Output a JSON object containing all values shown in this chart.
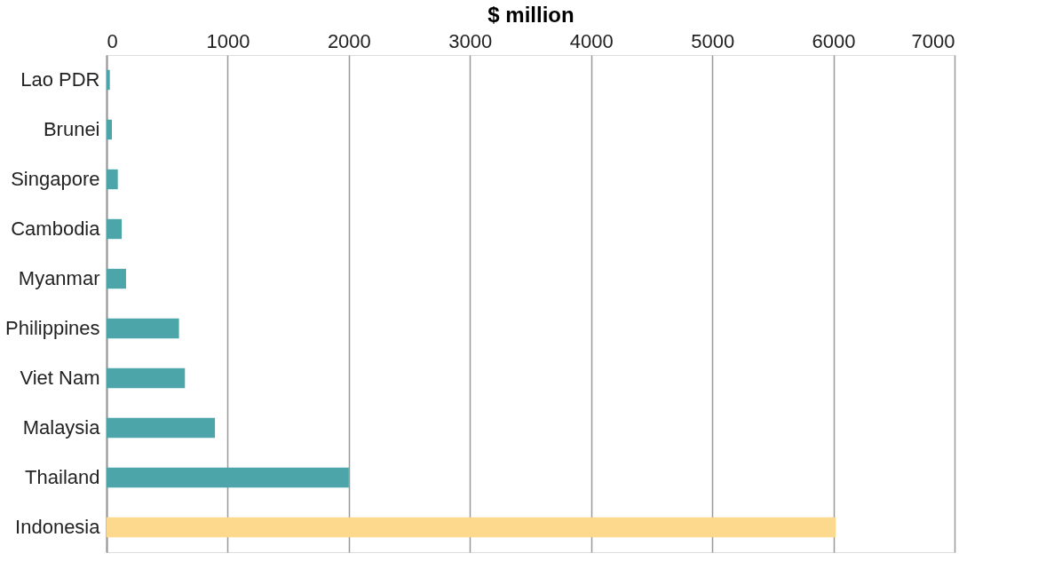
{
  "chart_data": {
    "type": "bar",
    "orientation": "horizontal",
    "xlabel": "$ million",
    "categories": [
      "Lao PDR",
      "Brunei",
      "Singapore",
      "Cambodia",
      "Myanmar",
      "Philippines",
      "Viet Nam",
      "Malaysia",
      "Thailand",
      "Indonesia"
    ],
    "values": [
      27,
      44,
      93,
      125,
      161,
      598,
      647,
      895,
      2000,
      6020
    ],
    "colors": [
      "#4ca5a8",
      "#4ca5a8",
      "#4ca5a8",
      "#4ca5a8",
      "#4ca5a8",
      "#4ca5a8",
      "#4ca5a8",
      "#4ca5a8",
      "#4ca5a8",
      "#fcd98c"
    ],
    "xlim": [
      0,
      7000
    ],
    "xticks": [
      0,
      1000,
      2000,
      3000,
      4000,
      5000,
      6000,
      7000
    ],
    "grid": "x"
  }
}
